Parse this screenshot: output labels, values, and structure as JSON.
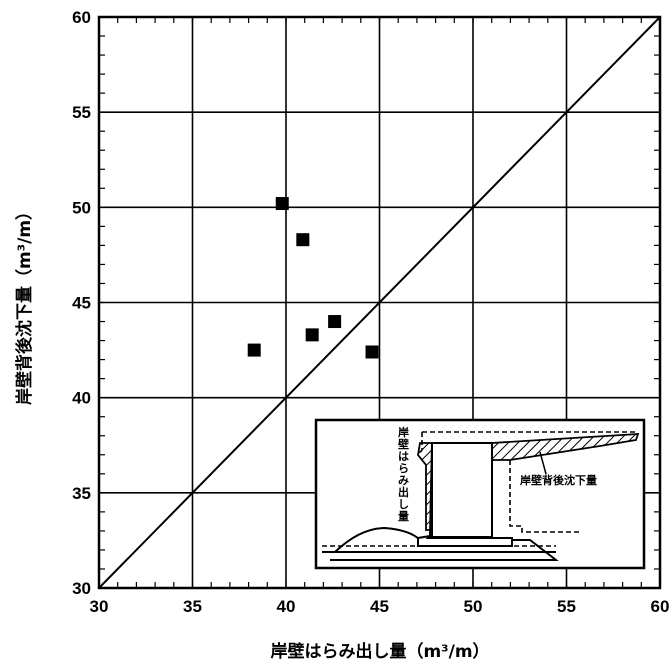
{
  "chart_data": {
    "type": "scatter",
    "title": "",
    "xlabel": "岸壁はらみ出し量（m³/m）",
    "ylabel": "岸壁背後沈下量（m³/m）",
    "xlim": [
      30,
      60
    ],
    "ylim": [
      30,
      60
    ],
    "x_ticks": [
      "30",
      "35",
      "40",
      "45",
      "50",
      "55",
      "60"
    ],
    "y_ticks": [
      "30",
      "35",
      "40",
      "45",
      "50",
      "55",
      "60"
    ],
    "grid": true,
    "reference_line": "y = x",
    "marker": "filled-square",
    "series": [
      {
        "points": [
          {
            "x": 38.3,
            "y": 42.5
          },
          {
            "x": 39.8,
            "y": 50.2
          },
          {
            "x": 40.9,
            "y": 48.3
          },
          {
            "x": 41.4,
            "y": 43.3
          },
          {
            "x": 42.6,
            "y": 44.0
          },
          {
            "x": 44.6,
            "y": 42.4
          }
        ]
      }
    ],
    "inset": {
      "label_bulge": "岸壁はらみ出し量",
      "label_settlement": "岸壁背後沈下量"
    }
  }
}
